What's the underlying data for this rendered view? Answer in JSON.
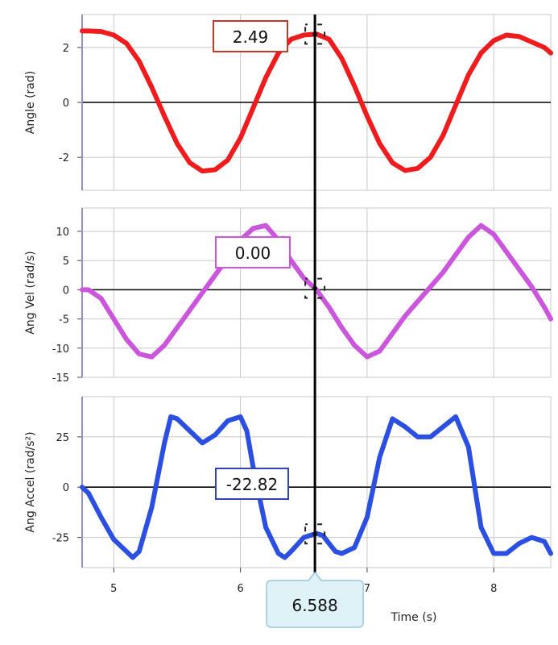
{
  "chart_data": [
    {
      "type": "line",
      "ylabel": "Angle (rad)",
      "xlabel": "",
      "xlim": [
        4.75,
        8.45
      ],
      "ylim": [
        -3.2,
        3.2
      ],
      "yticks": [
        "-2",
        "0",
        "2"
      ],
      "ytick_values": [
        -2,
        0,
        2
      ],
      "color": "#ee1c1c",
      "readout": "2.49",
      "readout_border": "#c0392b",
      "series": [
        {
          "values_x": [
            4.75,
            4.8,
            4.9,
            5.0,
            5.1,
            5.2,
            5.3,
            5.4,
            5.5,
            5.6,
            5.7,
            5.8,
            5.9,
            6.0,
            6.1,
            6.2,
            6.3,
            6.4,
            6.5,
            6.6,
            6.7,
            6.8,
            6.9,
            7.0,
            7.1,
            7.2,
            7.3,
            7.4,
            7.5,
            7.6,
            7.7,
            7.8,
            7.9,
            8.0,
            8.1,
            8.2,
            8.3,
            8.4,
            8.45
          ],
          "values": [
            2.6,
            2.6,
            2.58,
            2.45,
            2.15,
            1.5,
            0.55,
            -0.5,
            -1.5,
            -2.2,
            -2.5,
            -2.45,
            -2.1,
            -1.3,
            -0.2,
            0.9,
            1.8,
            2.3,
            2.45,
            2.49,
            2.3,
            1.6,
            0.6,
            -0.5,
            -1.5,
            -2.2,
            -2.48,
            -2.4,
            -2.0,
            -1.2,
            -0.1,
            1.0,
            1.8,
            2.25,
            2.45,
            2.4,
            2.2,
            2.0,
            1.8
          ]
        }
      ]
    },
    {
      "type": "line",
      "ylabel": "Ang Vel (rad/s)",
      "xlabel": "",
      "xlim": [
        4.75,
        8.45
      ],
      "ylim": [
        -15,
        14
      ],
      "yticks": [
        "-15",
        "-10",
        "-5",
        "0",
        "5",
        "10"
      ],
      "ytick_values": [
        -15,
        -10,
        -5,
        0,
        5,
        10
      ],
      "color": "#cc55dd",
      "readout": "0.00",
      "readout_border": "#cc55dd",
      "series": [
        {
          "values_x": [
            4.75,
            4.8,
            4.9,
            5.0,
            5.1,
            5.2,
            5.3,
            5.4,
            5.5,
            5.6,
            5.7,
            5.8,
            5.9,
            6.0,
            6.1,
            6.2,
            6.3,
            6.4,
            6.5,
            6.6,
            6.7,
            6.8,
            6.9,
            7.0,
            7.1,
            7.2,
            7.3,
            7.4,
            7.5,
            7.6,
            7.7,
            7.8,
            7.9,
            8.0,
            8.1,
            8.2,
            8.3,
            8.4,
            8.45
          ],
          "values": [
            0,
            0,
            -1.5,
            -5,
            -8.5,
            -11,
            -11.5,
            -9.5,
            -6.5,
            -3.5,
            -0.5,
            2.5,
            5.5,
            8.5,
            10.5,
            11,
            8.5,
            5,
            2,
            0,
            -3,
            -6.5,
            -9.5,
            -11.5,
            -10.5,
            -7.5,
            -4.5,
            -2,
            0.5,
            3,
            6,
            9,
            11,
            9.5,
            6.5,
            3.5,
            0.5,
            -3,
            -5
          ]
        }
      ]
    },
    {
      "type": "line",
      "ylabel": "Ang Accel (rad/s²)",
      "xlabel": "Time (s)",
      "xlim": [
        4.75,
        8.45
      ],
      "ylim": [
        -40,
        45
      ],
      "yticks": [
        "-25",
        "0",
        "25"
      ],
      "ytick_values": [
        -25,
        0,
        25
      ],
      "xticks": [
        "5",
        "6",
        "7",
        "8"
      ],
      "xtick_values": [
        5,
        6,
        7,
        8
      ],
      "color": "#2b4fe0",
      "readout": "-22.82",
      "readout_border": "#3344bb",
      "series": [
        {
          "values_x": [
            4.75,
            4.8,
            4.9,
            5.0,
            5.1,
            5.15,
            5.2,
            5.3,
            5.4,
            5.45,
            5.5,
            5.6,
            5.7,
            5.8,
            5.9,
            6.0,
            6.05,
            6.1,
            6.2,
            6.3,
            6.35,
            6.4,
            6.5,
            6.6,
            6.65,
            6.7,
            6.75,
            6.8,
            6.9,
            7.0,
            7.1,
            7.2,
            7.3,
            7.4,
            7.5,
            7.6,
            7.7,
            7.8,
            7.85,
            7.9,
            8.0,
            8.1,
            8.2,
            8.3,
            8.4,
            8.45
          ],
          "values": [
            0,
            -3,
            -15,
            -26,
            -32,
            -35,
            -32,
            -10,
            22,
            35,
            34,
            28,
            22,
            26,
            33,
            35,
            28,
            10,
            -20,
            -33,
            -35,
            -32,
            -25,
            -23,
            -24,
            -28,
            -32,
            -33,
            -30,
            -15,
            15,
            34,
            30,
            25,
            25,
            30,
            35,
            20,
            0,
            -20,
            -33,
            -33,
            -28,
            -25,
            -27,
            -33
          ]
        }
      ]
    }
  ],
  "cursor": {
    "time": "6.588",
    "time_value": 6.588
  },
  "colors": {
    "grid": "#c8c8c8",
    "axis_zero": "#000000",
    "cursor": "#000000",
    "callout_fill": "#dff2f8",
    "callout_border": "#9cc6d8",
    "plot_border": "#9090c8"
  }
}
